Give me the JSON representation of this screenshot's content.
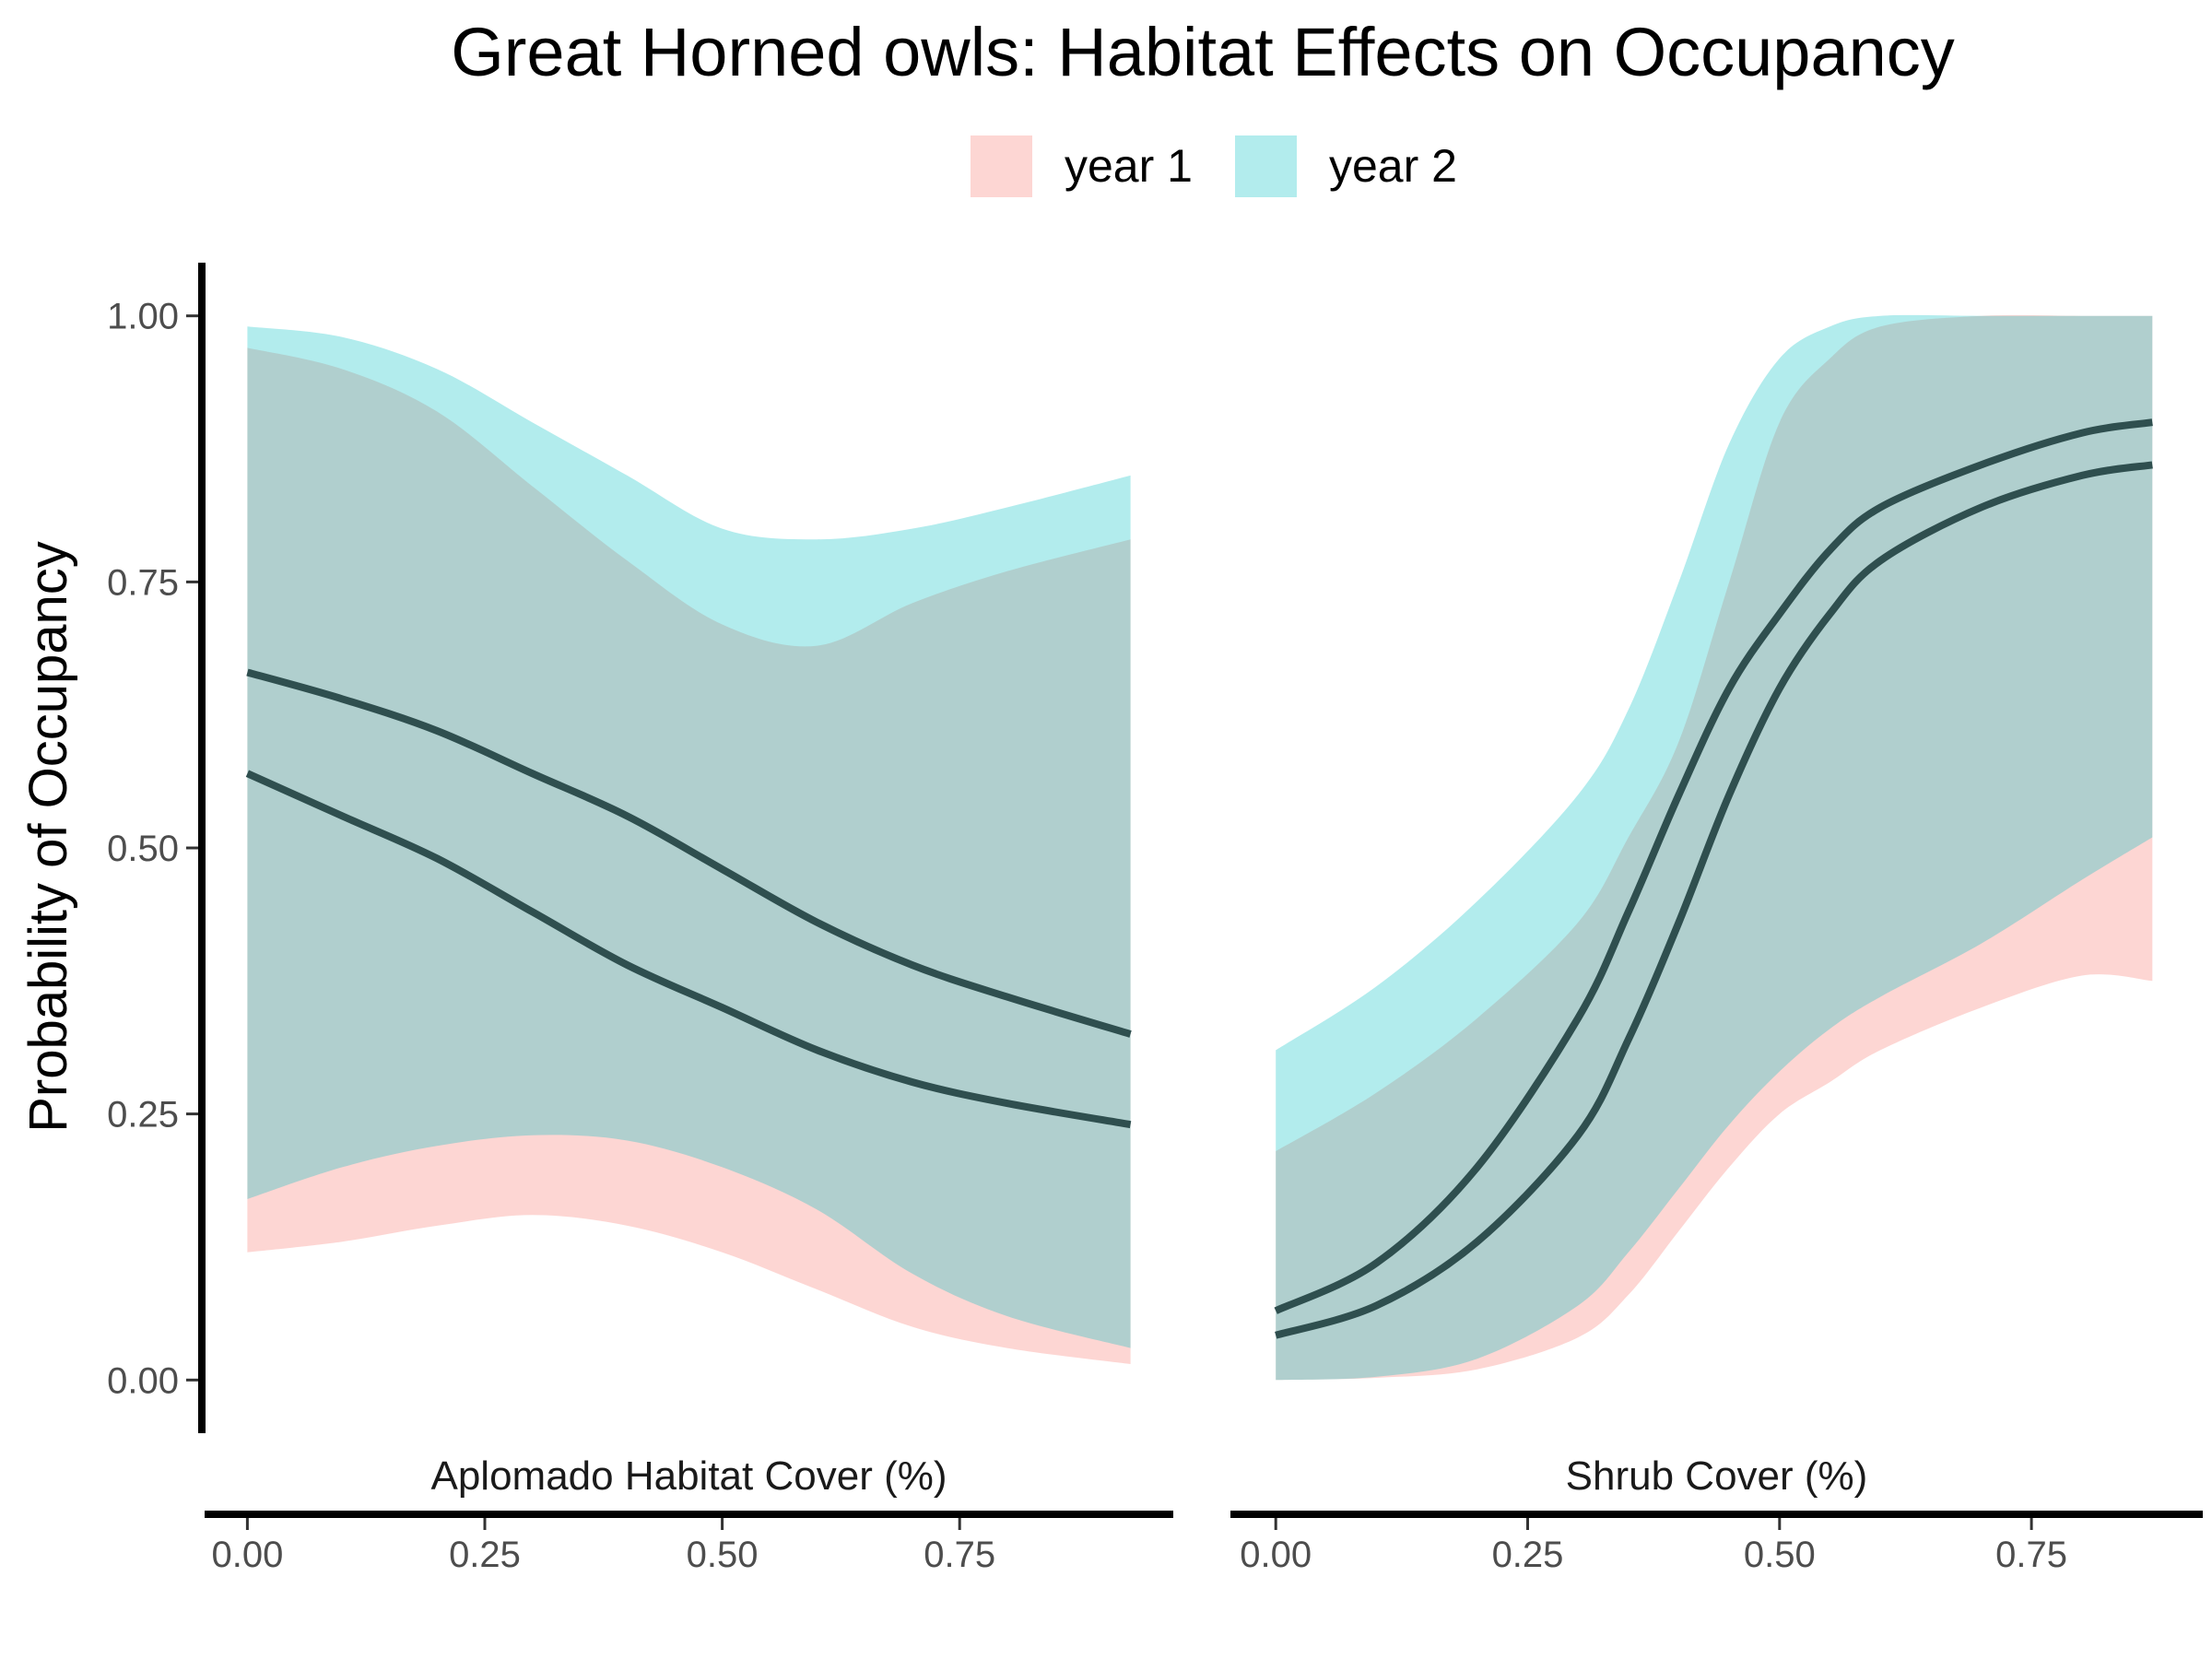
{
  "chart_data": {
    "type": "area",
    "title": "Great Horned owls: Habitat Effects on Occupancy",
    "ylabel": "Probability of Occupancy",
    "ylim": [
      -0.05,
      1.05
    ],
    "yticks": [
      "0.00",
      "0.25",
      "0.50",
      "0.75",
      "1.00"
    ],
    "xticks": [
      "0.00",
      "0.25",
      "0.50",
      "0.75"
    ],
    "grid": false,
    "legend": {
      "placement": "top",
      "entries": [
        {
          "name": "year 1",
          "color": "#F8766D"
        },
        {
          "name": "year 2",
          "color": "#00BFC4"
        }
      ]
    },
    "line_color": "#2F4F4F",
    "panels": [
      {
        "strip": "Aplomado Habitat Cover (%)",
        "xlim": [
          -0.045,
          0.975
        ],
        "x": [
          0.0,
          0.1,
          0.2,
          0.3,
          0.4,
          0.5,
          0.6,
          0.7,
          0.8,
          0.93
        ],
        "series": [
          {
            "name": "year 1",
            "mean": [
              0.57,
              0.53,
              0.49,
              0.44,
              0.39,
              0.35,
              0.31,
              0.28,
              0.26,
              0.24
            ],
            "lower": [
              0.12,
              0.13,
              0.145,
              0.155,
              0.145,
              0.12,
              0.085,
              0.05,
              0.03,
              0.015
            ],
            "upper": [
              0.97,
              0.95,
              0.91,
              0.84,
              0.77,
              0.71,
              0.69,
              0.73,
              0.76,
              0.79
            ]
          },
          {
            "name": "year 2",
            "mean": [
              0.665,
              0.64,
              0.61,
              0.57,
              0.53,
              0.48,
              0.43,
              0.39,
              0.36,
              0.325
            ],
            "lower": [
              0.17,
              0.2,
              0.22,
              0.23,
              0.225,
              0.2,
              0.16,
              0.1,
              0.06,
              0.03
            ],
            "upper": [
              0.99,
              0.98,
              0.95,
              0.9,
              0.85,
              0.8,
              0.79,
              0.8,
              0.82,
              0.85
            ]
          }
        ]
      },
      {
        "strip": "Shrub Cover (%)",
        "xlim": [
          -0.045,
          0.92
        ],
        "x": [
          0.0,
          0.1,
          0.2,
          0.3,
          0.35,
          0.4,
          0.45,
          0.5,
          0.55,
          0.6,
          0.7,
          0.8,
          0.87
        ],
        "series": [
          {
            "name": "year 1",
            "mean": [
              0.042,
              0.07,
              0.13,
              0.23,
              0.32,
              0.43,
              0.55,
              0.65,
              0.72,
              0.77,
              0.82,
              0.85,
              0.86
            ],
            "lower": [
              0.0,
              0.002,
              0.01,
              0.04,
              0.08,
              0.14,
              0.2,
              0.25,
              0.28,
              0.31,
              0.35,
              0.38,
              0.375
            ],
            "upper": [
              0.215,
              0.27,
              0.34,
              0.43,
              0.51,
              0.6,
              0.75,
              0.9,
              0.96,
              0.99,
              1.0,
              1.0,
              1.0
            ]
          },
          {
            "name": "year 2",
            "mean": [
              0.065,
              0.11,
              0.2,
              0.34,
              0.44,
              0.55,
              0.65,
              0.72,
              0.78,
              0.82,
              0.86,
              0.89,
              0.9
            ],
            "lower": [
              0.0,
              0.003,
              0.02,
              0.07,
              0.12,
              0.18,
              0.24,
              0.29,
              0.33,
              0.36,
              0.41,
              0.47,
              0.51
            ],
            "upper": [
              0.31,
              0.37,
              0.45,
              0.55,
              0.63,
              0.75,
              0.88,
              0.96,
              0.99,
              1.0,
              1.0,
              1.0,
              1.0
            ]
          }
        ]
      }
    ]
  }
}
